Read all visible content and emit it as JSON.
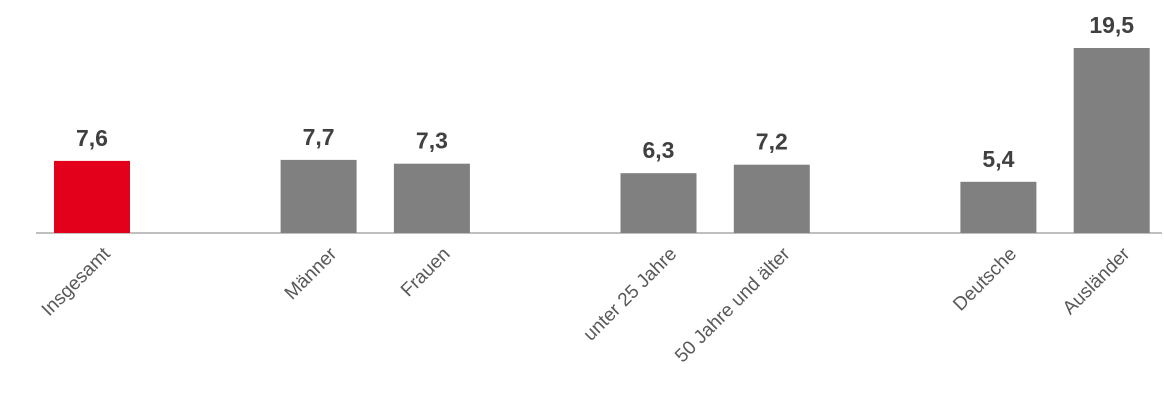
{
  "chart_data": {
    "type": "bar",
    "categories": [
      "Insgesamt",
      "",
      "Männer",
      "Frauen",
      "",
      "unter 25 Jahre",
      "50 Jahre und älter",
      "",
      "Deutsche",
      "Ausländer"
    ],
    "values": [
      7.6,
      null,
      7.7,
      7.3,
      null,
      6.3,
      7.2,
      null,
      5.4,
      19.5
    ],
    "value_labels": [
      "7,6",
      "",
      "7,7",
      "7,3",
      "",
      "6,3",
      "7,2",
      "",
      "5,4",
      "19,5"
    ],
    "bar_colors": [
      "#e2001a",
      null,
      "#808080",
      "#808080",
      null,
      "#808080",
      "#808080",
      null,
      "#808080",
      "#808080"
    ],
    "title": "",
    "xlabel": "",
    "ylabel": "",
    "ylim": [
      0,
      19.5
    ],
    "grid": false,
    "legend": "none",
    "axis_color": "#bfbfbf"
  }
}
